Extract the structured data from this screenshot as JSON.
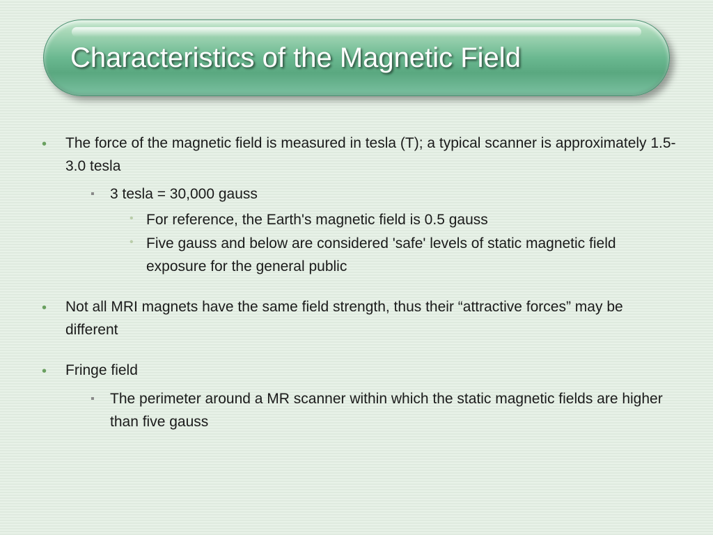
{
  "title": "Characteristics of the Magnetic Field",
  "colors": {
    "bullet_l1": "#6aa060",
    "bullet_l2": "#888888",
    "bullet_l3": "#b8cca8",
    "text": "#1a1a1a",
    "title_text": "#ffffff"
  },
  "font_sizes": {
    "title": 40,
    "body": 21
  },
  "bullets": [
    {
      "text": "The force of the magnetic field is measured in tesla (T); a typical scanner is approximately 1.5- 3.0 tesla",
      "sub": [
        {
          "text": "3 tesla = 30,000 gauss",
          "sub": [
            {
              "text": "For reference, the Earth's magnetic field is 0.5 gauss"
            },
            {
              "text": "Five gauss and below are considered 'safe' levels of static magnetic field exposure for the general public"
            }
          ]
        }
      ]
    },
    {
      "text": "Not all MRI magnets have the same field strength, thus their “attractive forces” may be different",
      "sub": []
    },
    {
      "text": "Fringe field",
      "sub": [
        {
          "text": "The perimeter around a MR scanner within which the static magnetic fields are higher than five gauss",
          "sub": []
        }
      ]
    }
  ]
}
